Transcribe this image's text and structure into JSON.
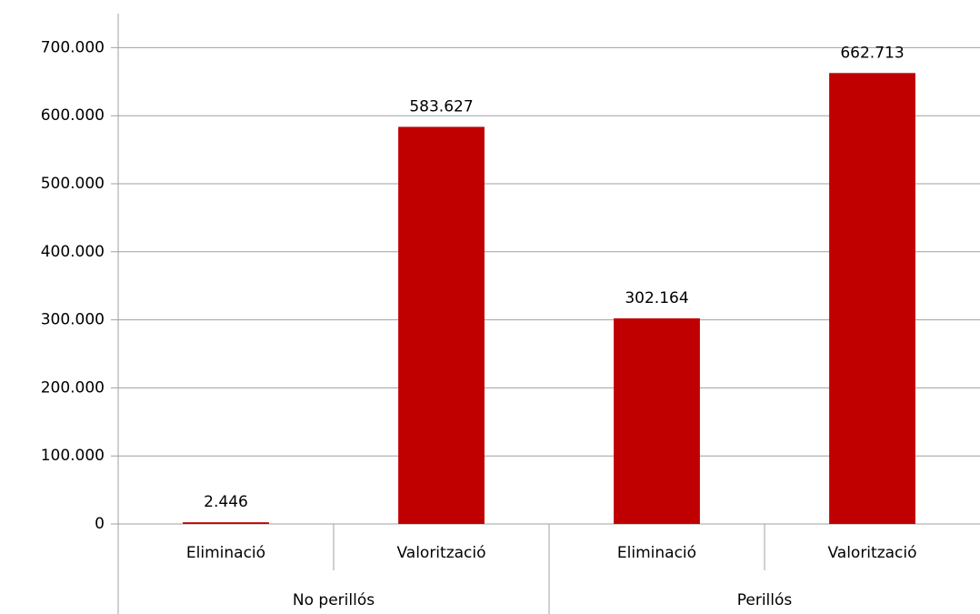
{
  "chart_data": {
    "type": "bar",
    "categories": [
      "Eliminació",
      "Valorització",
      "Eliminació",
      "Valorització"
    ],
    "groups": [
      {
        "label": "No perillós",
        "span": 2
      },
      {
        "label": "Perillós",
        "span": 2
      }
    ],
    "values": [
      2446,
      583627,
      302164,
      662713
    ],
    "value_labels": [
      "2.446",
      "583.627",
      "302.164",
      "662.713"
    ],
    "color": "#c00000",
    "ylim": [
      0,
      750000
    ],
    "yticks": [
      {
        "value": 0,
        "label": "0"
      },
      {
        "value": 100000,
        "label": "100.000"
      },
      {
        "value": 200000,
        "label": "200.000"
      },
      {
        "value": 300000,
        "label": "300.000"
      },
      {
        "value": 400000,
        "label": "400.000"
      },
      {
        "value": 500000,
        "label": "500.000"
      },
      {
        "value": 600000,
        "label": "600.000"
      },
      {
        "value": 700000,
        "label": "700.000"
      }
    ],
    "grid": true
  }
}
